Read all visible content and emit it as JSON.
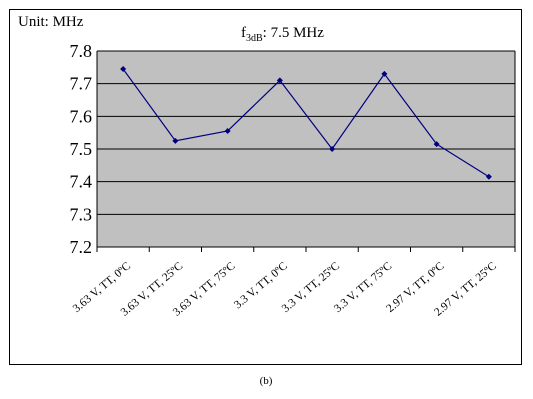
{
  "unit_label": "Unit: MHz",
  "title_prefix": "f",
  "title_subscript": "3dB",
  "title_suffix": ": 7.5 MHz",
  "caption": "(b)",
  "chart_data": {
    "type": "line",
    "title": "f3dB: 7.5 MHz",
    "xlabel": "",
    "ylabel": "",
    "unit": "Unit: MHz",
    "ylim": [
      7.2,
      7.8
    ],
    "yticks": [
      "7.2",
      "7.3",
      "7.4",
      "7.5",
      "7.6",
      "7.7",
      "7.8"
    ],
    "grid": true,
    "legend": "none",
    "plot_background": "#c0c0c0",
    "line_color": "#00007f",
    "categories": [
      "3.63 V, TT, 0ºC",
      "3.63 V, TT, 25ºC",
      "3.63 V, TT, 75ºC",
      "3.3 V, TT, 0ºC",
      "3.3 V, TT, 25ºC",
      "3.3 V, TT, 75ºC",
      "2.97 V, TT, 0ºC",
      "2.97 V, TT, 25ºC"
    ],
    "values": [
      7.745,
      7.525,
      7.555,
      7.71,
      7.5,
      7.73,
      7.515,
      7.415
    ]
  }
}
